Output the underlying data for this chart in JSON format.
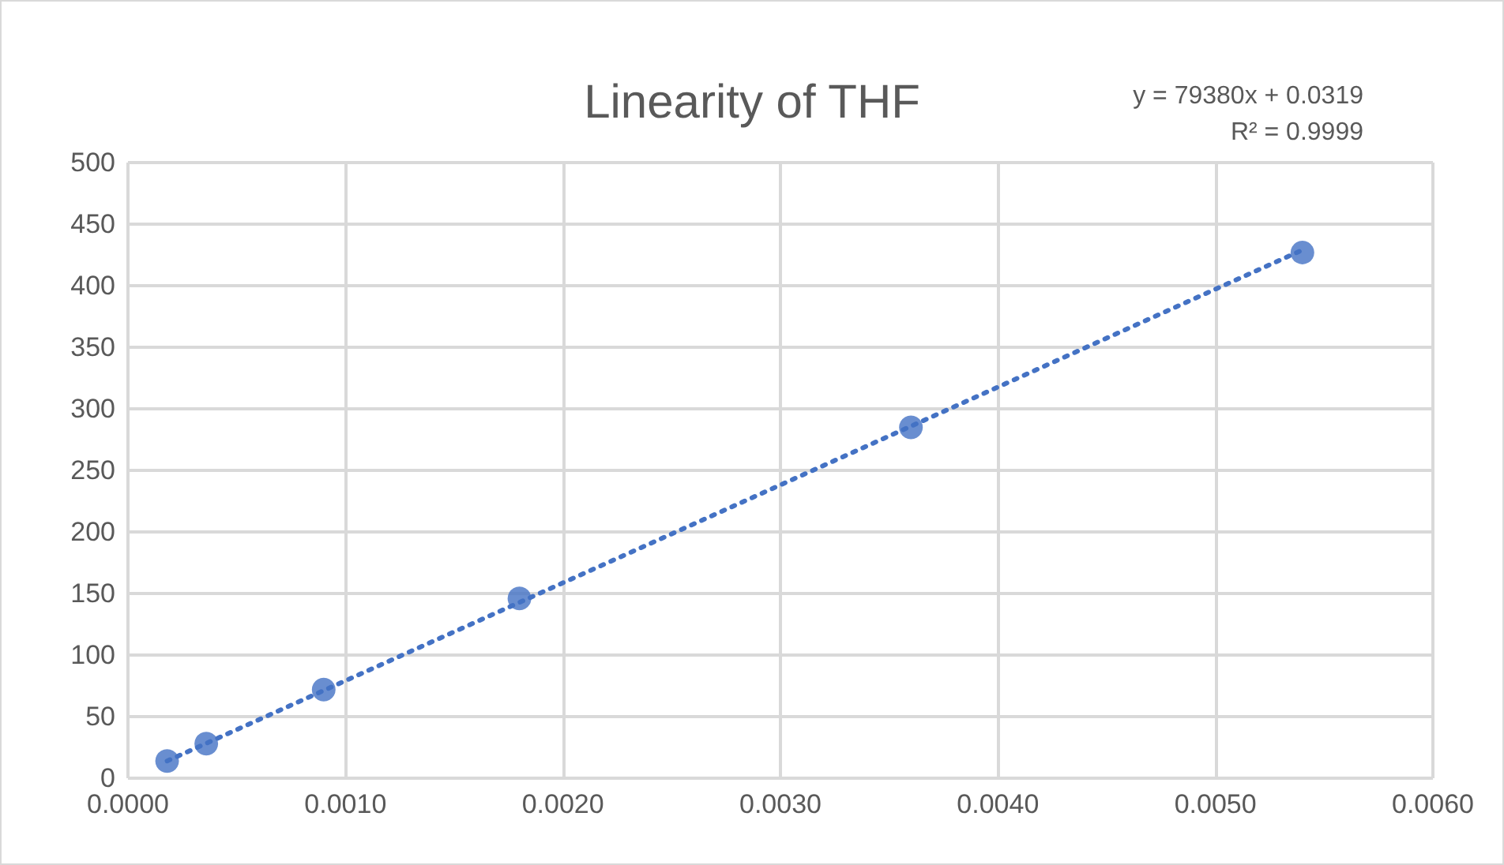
{
  "chart_data": {
    "type": "scatter",
    "title": "Linearity of THF",
    "series": [
      {
        "color": "#4472c4",
        "marker": "circle",
        "x": [
          0.00018,
          0.00036,
          0.0009,
          0.0018,
          0.0036,
          0.0054
        ],
        "values": [
          14,
          28,
          72,
          146,
          285,
          427
        ]
      },
      {
        "type": "line",
        "color": "#4472c4",
        "line_style": "dotted",
        "marker": "none",
        "x": [
          0.00018,
          0.0054
        ],
        "values": [
          14,
          429
        ]
      }
    ],
    "annotations": [
      "y = 79380x + 0.0319",
      "R² = 0.9999"
    ],
    "xlim": [
      0,
      0.006
    ],
    "xticks": [
      {
        "value": 0,
        "label": "0.0000"
      },
      {
        "value": 0.001,
        "label": "0.0010"
      },
      {
        "value": 0.002,
        "label": "0.0020"
      },
      {
        "value": 0.003,
        "label": "0.0030"
      },
      {
        "value": 0.004,
        "label": "0.0040"
      },
      {
        "value": 0.005,
        "label": "0.0050"
      },
      {
        "value": 0.006,
        "label": "0.0060"
      }
    ],
    "ylim": [
      0,
      500
    ],
    "yticks": [
      0,
      50,
      100,
      150,
      200,
      250,
      300,
      350,
      400,
      450,
      500
    ],
    "grid": true
  }
}
